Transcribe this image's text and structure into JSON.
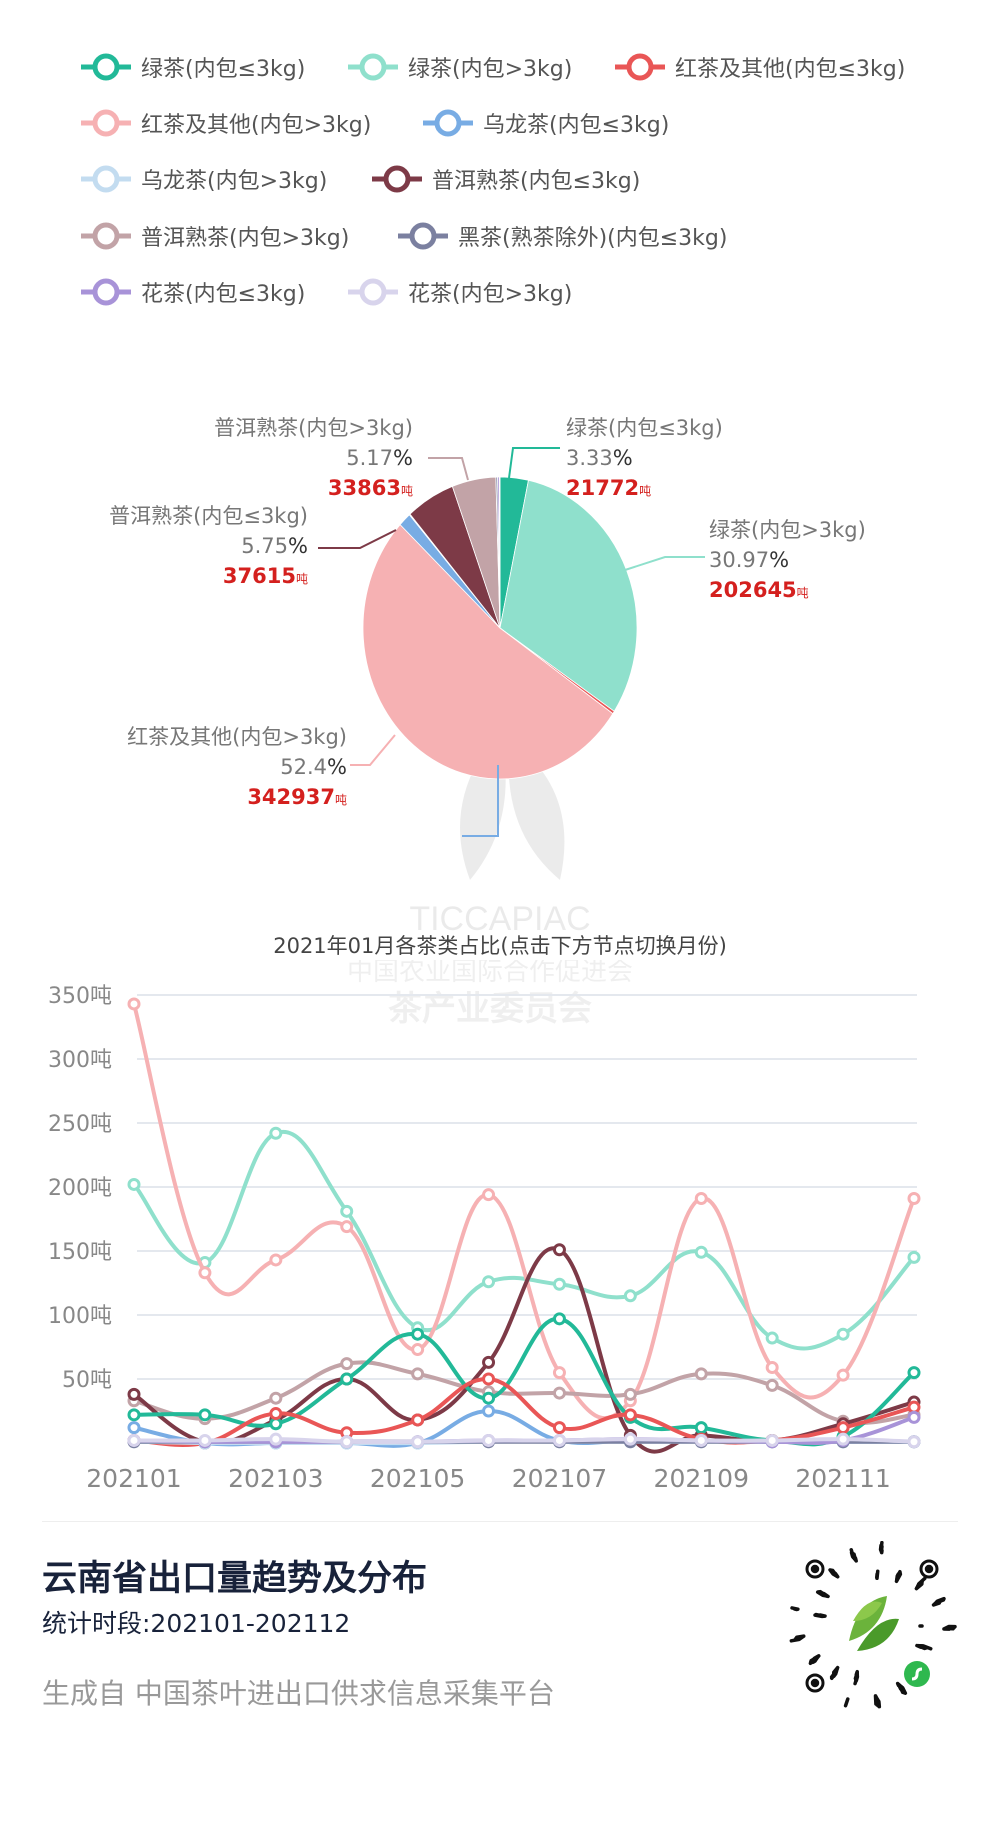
{
  "legend": [
    {
      "name": "绿茶(内包≤3kg)",
      "color": "#22b998"
    },
    {
      "name": "绿茶(内包>3kg)",
      "color": "#8fe0cc"
    },
    {
      "name": "红茶及其他(内包≤3kg)",
      "color": "#e95656"
    },
    {
      "name": "红茶及其他(内包>3kg)",
      "color": "#f6b1b3"
    },
    {
      "name": "乌龙茶(内包≤3kg)",
      "color": "#78ace4"
    },
    {
      "name": "乌龙茶(内包>3kg)",
      "color": "#c3dcf0"
    },
    {
      "name": "普洱熟茶(内包≤3kg)",
      "color": "#7d3a47"
    },
    {
      "name": "普洱熟茶(内包>3kg)",
      "color": "#c2a3a7"
    },
    {
      "name": "黑茶(熟茶除外)(内包≤3kg)",
      "color": "#7b80a0"
    },
    {
      "name": "花茶(内包≤3kg)",
      "color": "#a893d8"
    },
    {
      "name": "花茶(内包>3kg)",
      "color": "#d8d4ec"
    }
  ],
  "chart_data": [
    {
      "type": "pie",
      "title": "2021年01月各茶类占比(点击下方节点切换月份)",
      "unit": "吨",
      "slices": [
        {
          "name": "绿茶(内包≤3kg)",
          "percent": 3.33,
          "value": 21772,
          "pct_label": "3.33",
          "val_label": "21772"
        },
        {
          "name": "绿茶(内包>3kg)",
          "percent": 30.97,
          "value": 202645,
          "pct_label": "30.97",
          "val_label": "202645"
        },
        {
          "name": "红茶及其他(内包≤3kg)",
          "percent": 0.3
        },
        {
          "name": "红茶及其他(内包>3kg)",
          "percent": 52.4,
          "value": 342937,
          "pct_label": "52.4",
          "val_label": "342937"
        },
        {
          "name": "乌龙茶(内包≤3kg)",
          "percent": 1.5
        },
        {
          "name": "乌龙茶(内包>3kg)",
          "percent": 0.1
        },
        {
          "name": "普洱熟茶(内包≤3kg)",
          "percent": 5.75,
          "value": 37615,
          "pct_label": "5.75",
          "val_label": "37615"
        },
        {
          "name": "普洱熟茶(内包>3kg)",
          "percent": 5.17,
          "value": 33863,
          "pct_label": "5.17",
          "val_label": "33863"
        },
        {
          "name": "黑茶(熟茶除外)(内包≤3kg)",
          "percent": 0.2
        },
        {
          "name": "花茶(内包≤3kg)",
          "percent": 0.2
        },
        {
          "name": "花茶(内包>3kg)",
          "percent": 0.08
        }
      ]
    },
    {
      "type": "line",
      "smooth": true,
      "categories": [
        "202101",
        "202102",
        "202103",
        "202104",
        "202105",
        "202106",
        "202107",
        "202108",
        "202109",
        "202110",
        "202111",
        "202112"
      ],
      "x_tick_labels": [
        "202101",
        "202103",
        "202105",
        "202107",
        "202109",
        "202111"
      ],
      "y_ticks": [
        "50吨",
        "100吨",
        "150吨",
        "200吨",
        "250吨",
        "300吨",
        "350吨"
      ],
      "ylim": [
        0,
        350
      ],
      "grid": true,
      "series": [
        {
          "name": "绿茶(内包≤3kg)",
          "values": [
            22,
            22,
            15,
            50,
            85,
            35,
            97,
            20,
            12,
            2,
            5,
            55
          ]
        },
        {
          "name": "绿茶(内包>3kg)",
          "values": [
            202,
            141,
            242,
            181,
            90,
            126,
            124,
            115,
            149,
            82,
            85,
            145
          ]
        },
        {
          "name": "红茶及其他(内包≤3kg)",
          "values": [
            2,
            0,
            23,
            8,
            18,
            50,
            12,
            22,
            3,
            2,
            12,
            28
          ]
        },
        {
          "name": "红茶及其他(内包>3kg)",
          "values": [
            343,
            133,
            143,
            169,
            73,
            194,
            55,
            33,
            191,
            59,
            53,
            191
          ]
        },
        {
          "name": "乌龙茶(内包≤3kg)",
          "values": [
            12,
            0,
            0,
            0,
            0,
            25,
            2,
            2,
            2,
            1,
            1,
            1
          ]
        },
        {
          "name": "乌龙茶(内包>3kg)",
          "values": [
            1,
            0,
            0,
            0,
            0,
            1,
            1,
            1,
            1,
            1,
            1,
            1
          ]
        },
        {
          "name": "普洱熟茶(内包≤3kg)",
          "values": [
            38,
            1,
            18,
            50,
            18,
            63,
            151,
            6,
            6,
            2,
            15,
            32
          ]
        },
        {
          "name": "普洱熟茶(内包>3kg)",
          "values": [
            33,
            19,
            35,
            62,
            54,
            40,
            39,
            38,
            54,
            45,
            17,
            22
          ]
        },
        {
          "name": "黑茶(熟茶除外)(内包≤3kg)",
          "values": [
            1,
            1,
            1,
            1,
            1,
            1,
            1,
            1,
            1,
            1,
            1,
            1
          ]
        },
        {
          "name": "花茶(内包≤3kg)",
          "values": [
            2,
            1,
            1,
            1,
            1,
            2,
            2,
            3,
            2,
            1,
            2,
            20
          ]
        },
        {
          "name": "花茶(内包>3kg)",
          "values": [
            2,
            2,
            3,
            1,
            1,
            2,
            2,
            3,
            2,
            2,
            3,
            1
          ]
        }
      ]
    }
  ],
  "pct_sign": "%",
  "ton": "吨",
  "footer": {
    "title": "云南省出口量趋势及分布",
    "period": "统计时段:202101-202112",
    "source": "生成自 中国茶叶进出口供求信息采集平台"
  },
  "watermark": {
    "brand": "TICCAPIAC",
    "line1": "中国农业国际合作促进会",
    "line2": "茶产业委员会"
  }
}
